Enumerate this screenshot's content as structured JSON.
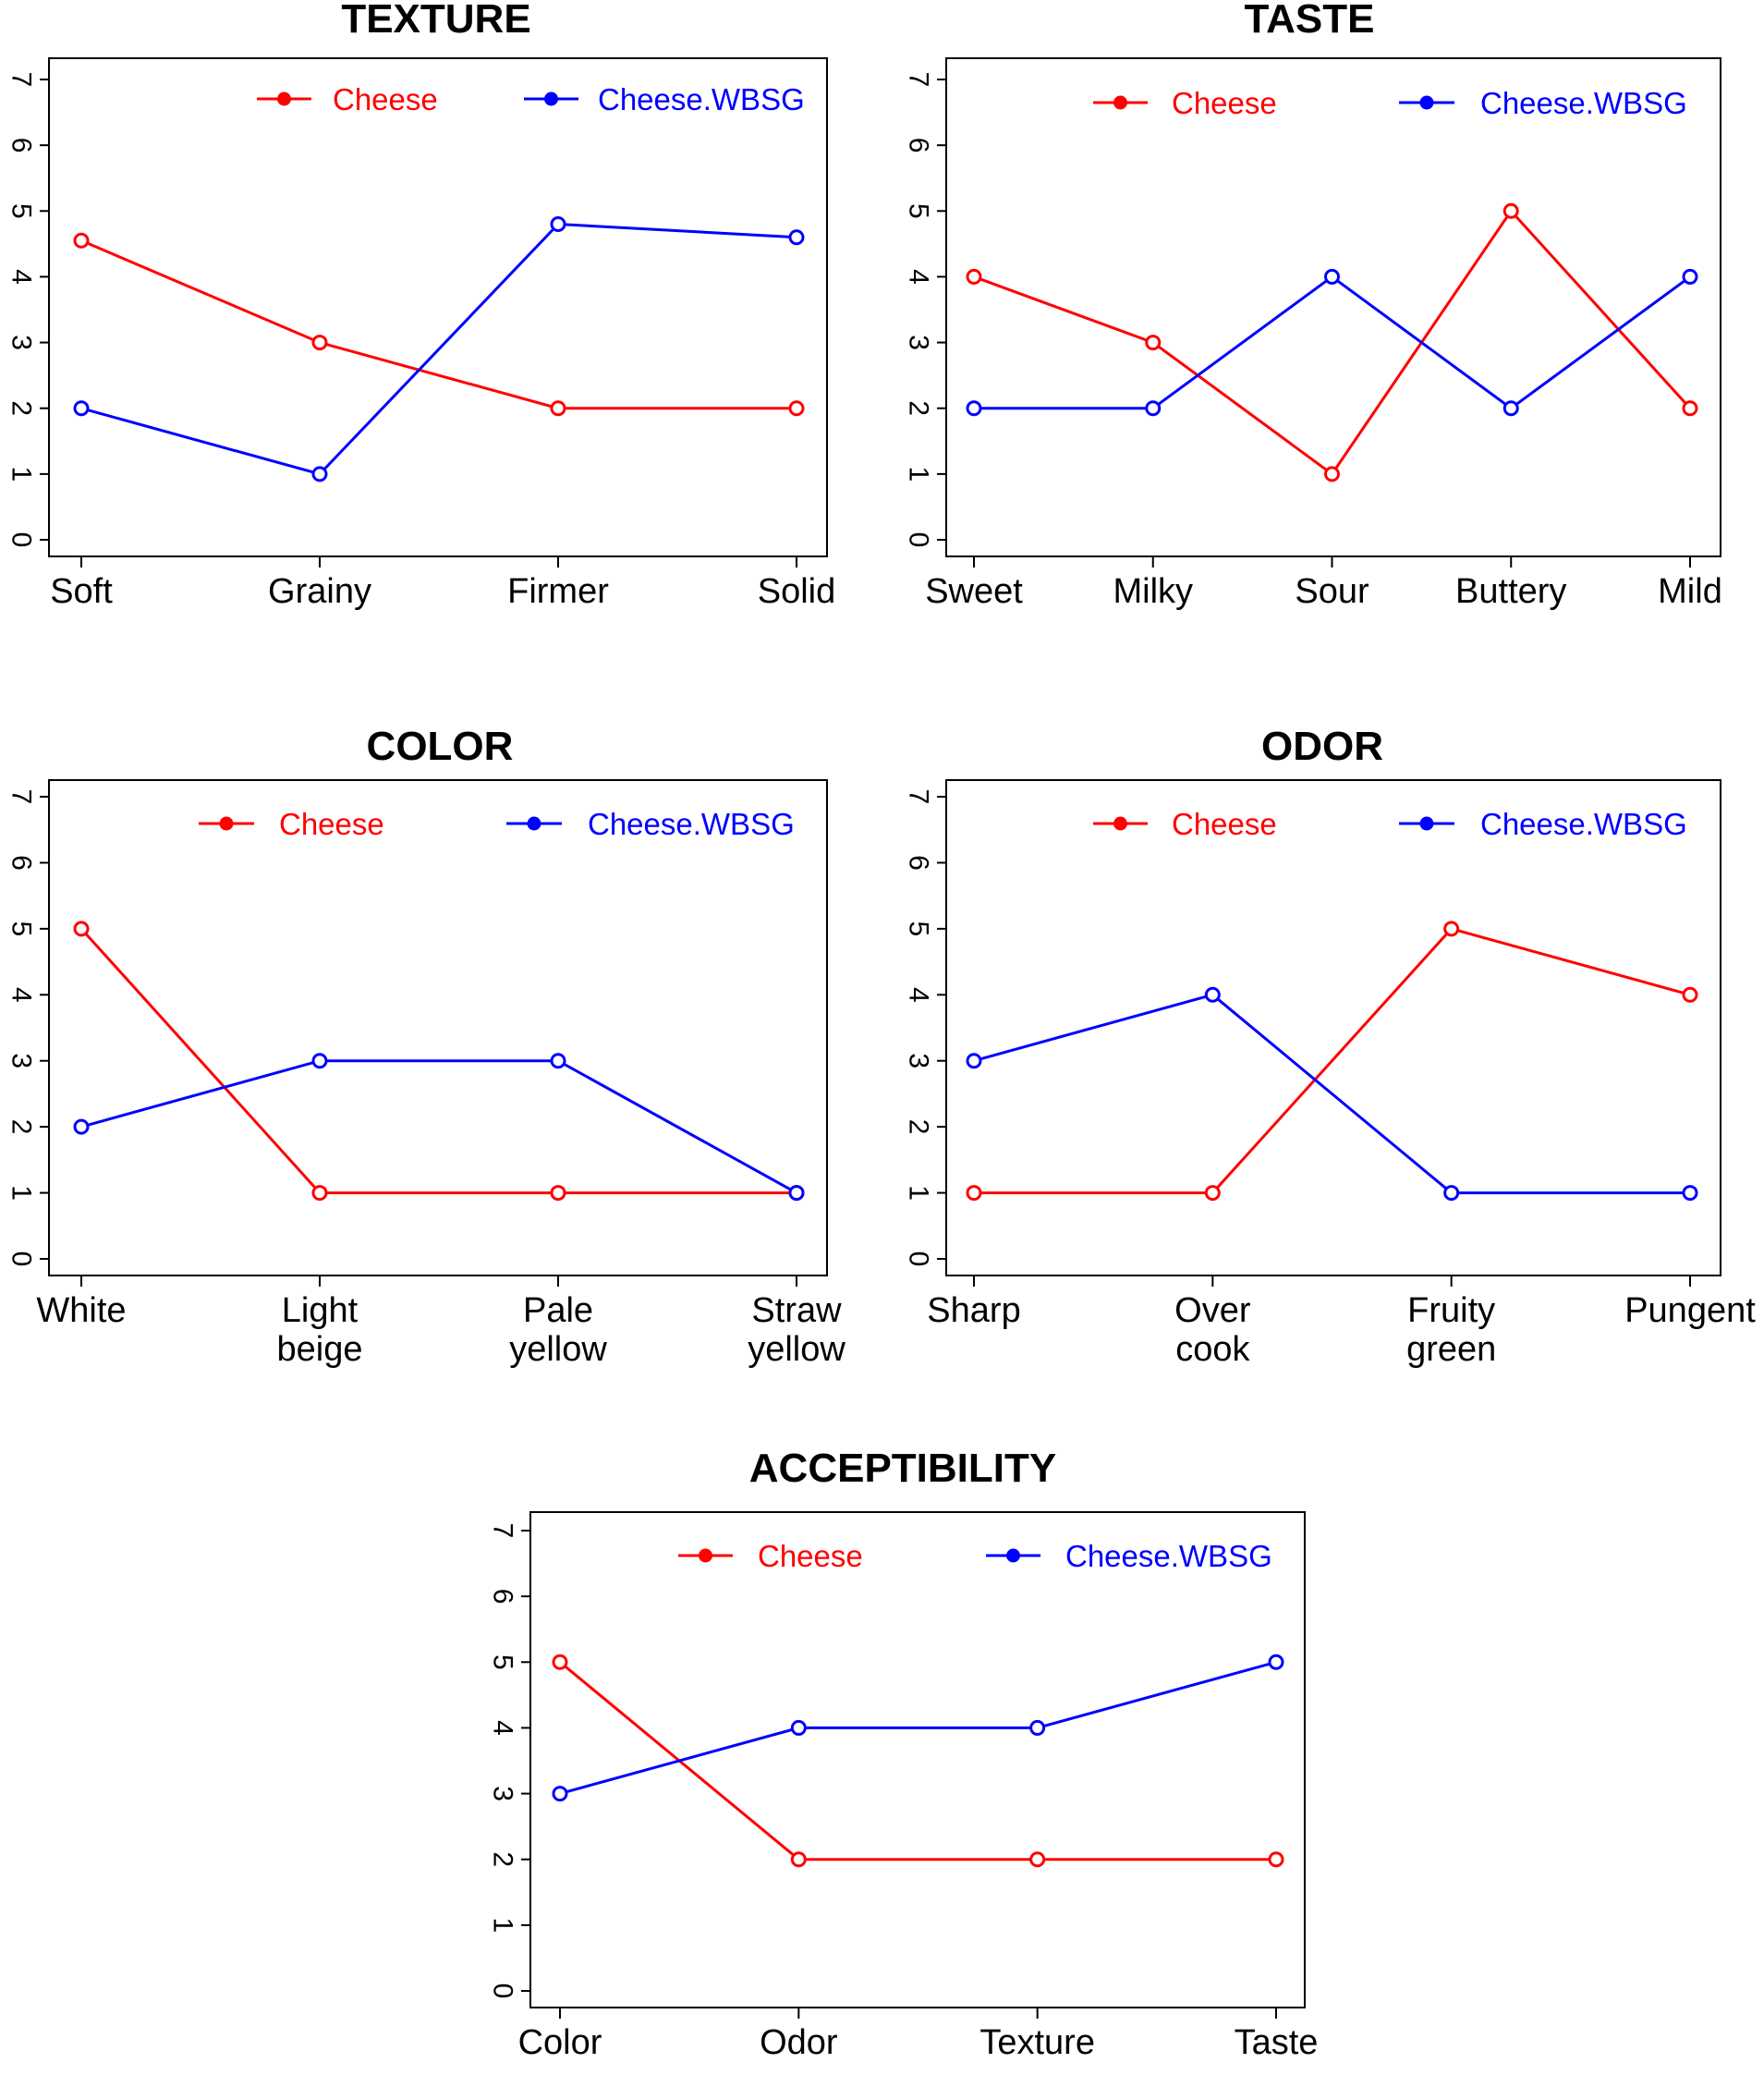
{
  "chart_data": [
    {
      "type": "line",
      "title": "TEXTURE",
      "categories": [
        [
          "Soft"
        ],
        [
          "Grainy"
        ],
        [
          "Firmer"
        ],
        [
          "Solid"
        ]
      ],
      "ylim": [
        0,
        7
      ],
      "yticks": [
        0,
        1,
        2,
        3,
        4,
        5,
        6,
        7
      ],
      "series": [
        {
          "name": "Cheese",
          "color": "#ff0000",
          "values": [
            4.55,
            3,
            2,
            2
          ]
        },
        {
          "name": "Cheese.WBSG",
          "color": "#0000ff",
          "values": [
            2,
            1,
            4.8,
            4.6
          ]
        }
      ],
      "legend": "top"
    },
    {
      "type": "line",
      "title": "TASTE",
      "categories": [
        [
          "Sweet"
        ],
        [
          "Milky"
        ],
        [
          "Sour"
        ],
        [
          "Buttery"
        ],
        [
          "Mild"
        ]
      ],
      "ylim": [
        0,
        7
      ],
      "yticks": [
        0,
        1,
        2,
        3,
        4,
        5,
        6,
        7
      ],
      "series": [
        {
          "name": "Cheese",
          "color": "#ff0000",
          "values": [
            4,
            3,
            1,
            5,
            2
          ]
        },
        {
          "name": "Cheese.WBSG",
          "color": "#0000ff",
          "values": [
            2,
            2,
            4,
            2,
            4
          ]
        }
      ],
      "legend": "top"
    },
    {
      "type": "line",
      "title": "COLOR",
      "categories": [
        [
          "White"
        ],
        [
          "Light",
          "beige"
        ],
        [
          "Pale",
          "yellow"
        ],
        [
          "Straw",
          "yellow"
        ]
      ],
      "ylim": [
        0,
        7
      ],
      "yticks": [
        0,
        1,
        2,
        3,
        4,
        5,
        6,
        7
      ],
      "series": [
        {
          "name": "Cheese",
          "color": "#ff0000",
          "values": [
            5,
            1,
            1,
            1
          ]
        },
        {
          "name": "Cheese.WBSG",
          "color": "#0000ff",
          "values": [
            2,
            3,
            3,
            1
          ]
        }
      ],
      "legend": "top"
    },
    {
      "type": "line",
      "title": "ODOR",
      "categories": [
        [
          "Sharp"
        ],
        [
          "Over",
          "cook"
        ],
        [
          "Fruity",
          "green"
        ],
        [
          "Pungent"
        ]
      ],
      "ylim": [
        0,
        7
      ],
      "yticks": [
        0,
        1,
        2,
        3,
        4,
        5,
        6,
        7
      ],
      "series": [
        {
          "name": "Cheese",
          "color": "#ff0000",
          "values": [
            1,
            1,
            5,
            4
          ]
        },
        {
          "name": "Cheese.WBSG",
          "color": "#0000ff",
          "values": [
            3,
            4,
            1,
            1
          ]
        }
      ],
      "legend": "top"
    },
    {
      "type": "line",
      "title": "ACCEPTIBILITY",
      "categories": [
        [
          "Color"
        ],
        [
          "Odor"
        ],
        [
          "Texture"
        ],
        [
          "Taste"
        ]
      ],
      "ylim": [
        0,
        7
      ],
      "yticks": [
        0,
        1,
        2,
        3,
        4,
        5,
        6,
        7
      ],
      "series": [
        {
          "name": "Cheese",
          "color": "#ff0000",
          "values": [
            5,
            2,
            2,
            2
          ]
        },
        {
          "name": "Cheese.WBSG",
          "color": "#0000ff",
          "values": [
            3,
            4,
            4,
            5
          ]
        }
      ],
      "legend": "top"
    }
  ]
}
